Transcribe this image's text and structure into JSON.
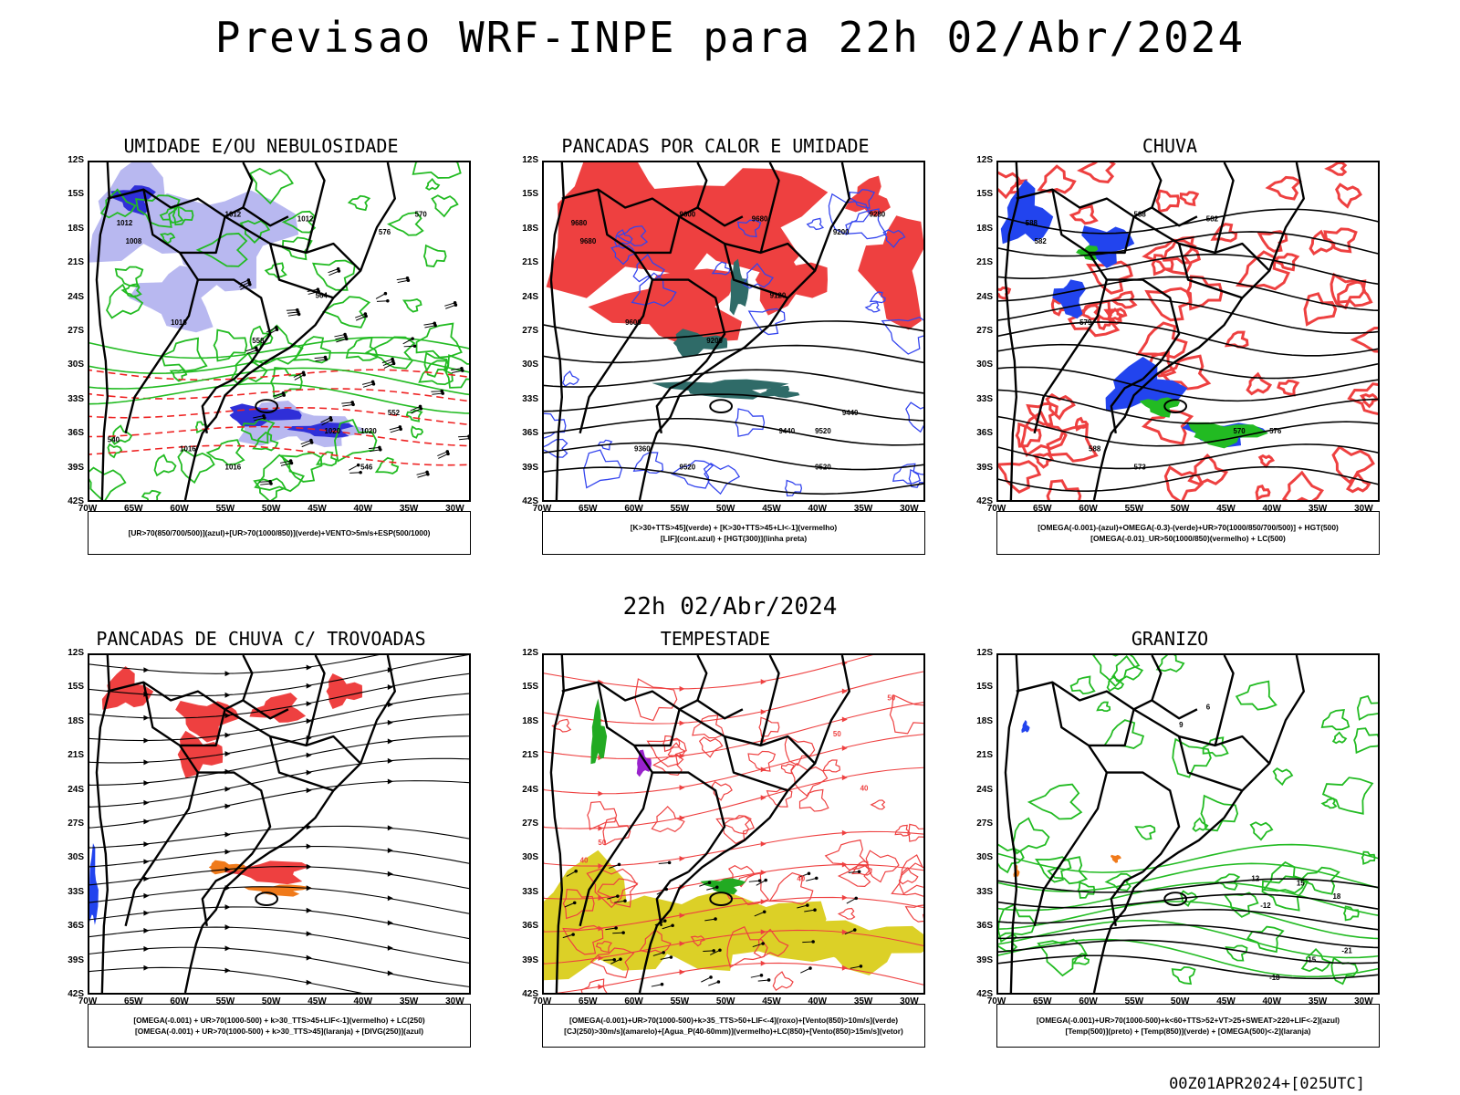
{
  "header": {
    "title": "Previsao WRF-INPE  para 22h 02/Abr/2024",
    "mid_date": "22h 02/Abr/2024"
  },
  "footer": {
    "run_label": "00Z01APR2024+[025UTC]"
  },
  "axes": {
    "lat_labels": [
      "12S",
      "15S",
      "18S",
      "21S",
      "24S",
      "27S",
      "30S",
      "33S",
      "36S",
      "39S",
      "42S"
    ],
    "lon_labels": [
      "70W",
      "65W",
      "60W",
      "55W",
      "50W",
      "45W",
      "40W",
      "35W",
      "30W"
    ]
  },
  "colors": {
    "umidade_media": "#b8b8f0",
    "umidade_baixa": "#2f2fd8",
    "umidade_verde": "#22bb22",
    "pancada_vermelho": "#ee4040",
    "pancada_teal": "#2f6b68",
    "azul": "#2244ee",
    "laranja": "#f07a1a",
    "roxo": "#9922cc",
    "amarelo": "#dcd027",
    "vento": "#000000"
  },
  "panels": [
    {
      "title": "UMIDADE E/OU NEBULOSIDADE",
      "legend": [
        "[UR>70(850/700/500)](azul)+[UR>70(1000/850)](verde)+VENTO>5m/s+ESP(500/1000)"
      ],
      "contour_labels": [
        "1012",
        "1012",
        "1012",
        "1008",
        "1016",
        "1020",
        "1016",
        "1020",
        "1016",
        "570",
        "576",
        "564",
        "558",
        "552",
        "546",
        "540"
      ]
    },
    {
      "title": "PANCADAS POR CALOR E UMIDADE",
      "legend": [
        "[K>30+TTS>45](verde) + [K>30+TTS>45+LI<-1](vermelho)",
        "[LIF](cont.azul) + [HGT(300)](linha preta)"
      ],
      "contour_labels": [
        "9680",
        "9600",
        "9680",
        "9680",
        "9600",
        "9520",
        "9520",
        "9440",
        "9360",
        "9280",
        "9200",
        "9120",
        "9200",
        "9440",
        "9520"
      ]
    },
    {
      "title": "CHUVA",
      "legend": [
        "[OMEGA(-0.001)-(azul)+OMEGA(-0.3)-(verde)+UR>70(1000/850/700/500)] + HGT(500)",
        "[OMEGA(-0.01)_UR>50(1000/850)(vermelho) + LC(500)"
      ],
      "contour_labels": [
        "588",
        "588",
        "582",
        "582",
        "579",
        "576",
        "573",
        "570",
        "588"
      ]
    },
    {
      "title": "PANCADAS DE CHUVA C/ TROVOADAS",
      "legend": [
        "[OMEGA(-0.001) + UR>70(1000-500) + k>30_TTS>45+LIF<-1](vermelho) + LC(250)",
        "[OMEGA(-0.001) + UR>70(1000-500) + k>30_TTS>45](laranja) + [DIVG(250)](azul)"
      ],
      "contour_labels": []
    },
    {
      "title": "TEMPESTADE",
      "legend": [
        "[OMEGA(-0.001)+UR>70(1000-500)+k>35_TTS>50+LIF<-4](roxo)+[Vento(850)>10m/s](verde)",
        "[CJ(250)>30m/s](amarelo)+[Agua_P(40-60mm)](vermelho)+LC(850)+[Vento(850)>15m/s](vetor)"
      ],
      "contour_labels": [
        "50",
        "50",
        "40",
        "40",
        "50",
        "40"
      ]
    },
    {
      "title": "GRANIZO",
      "legend": [
        "[OMEGA(-0.001)+UR>70(1000-500)+k<60+TTS>52+VT>25+SWEAT>220+LIF<-2](azul)",
        "[Temp(500)](preto) + [Temp(850)](verde) + [OMEGA(500)<-2](laranja)"
      ],
      "contour_labels": [
        "-12",
        "-15",
        "-18",
        "-21",
        "12",
        "15",
        "18",
        "9",
        "6"
      ]
    }
  ]
}
